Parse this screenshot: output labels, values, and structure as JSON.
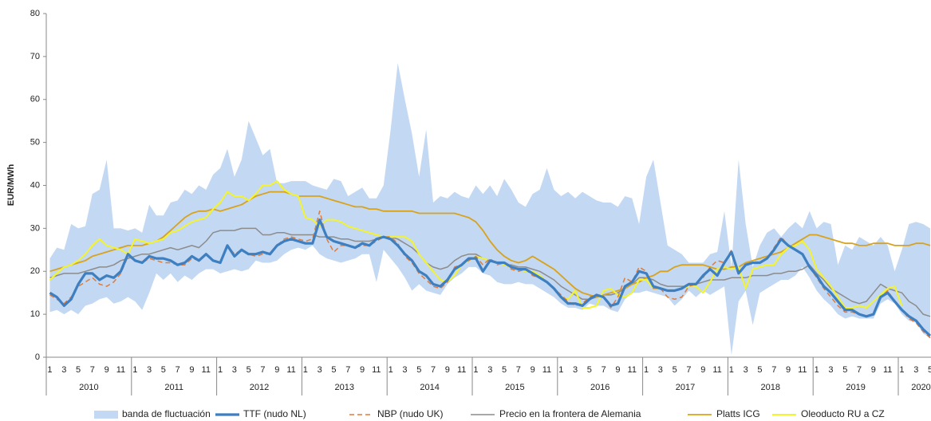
{
  "chart_data": {
    "type": "line",
    "ylabel": "EUR/MWh",
    "ylim": [
      0,
      80
    ],
    "yticks": [
      0,
      10,
      20,
      30,
      40,
      50,
      60,
      70,
      80
    ],
    "grid": false,
    "legend": "bottom",
    "categories": [
      "1",
      null,
      "3",
      null,
      "5",
      null,
      "7",
      null,
      "9",
      null,
      "11",
      null,
      "1",
      null,
      "3",
      null,
      "5",
      null,
      "7",
      null,
      "9",
      null,
      "11",
      null,
      "1",
      null,
      "3",
      null,
      "5",
      null,
      "7",
      null,
      "9",
      null,
      "11",
      null,
      "1",
      null,
      "3",
      null,
      "5",
      null,
      "7",
      null,
      "9",
      null,
      "11",
      null,
      "1",
      null,
      "3",
      null,
      "5",
      null,
      "7",
      null,
      "9",
      null,
      "11",
      null,
      "1",
      null,
      "3",
      null,
      "5",
      null,
      "7",
      null,
      "9",
      null,
      "11",
      null,
      "1",
      null,
      "3",
      null,
      "5",
      null,
      "7",
      null,
      "9",
      null,
      "11",
      null,
      "1",
      null,
      "3",
      null,
      "5",
      null,
      "7",
      null,
      "9",
      null,
      "11",
      null,
      "1",
      null,
      "3",
      null,
      "5",
      null,
      "7",
      null,
      "9",
      null,
      "11",
      null,
      "1",
      null,
      "3",
      null,
      "5",
      null,
      "7",
      null,
      "9",
      null,
      "11",
      null,
      "1",
      null,
      "3",
      null,
      "5"
    ],
    "years": [
      "2010",
      "2011",
      "2012",
      "2013",
      "2014",
      "2015",
      "2016",
      "2017",
      "2018",
      "2019",
      "2020"
    ],
    "band": {
      "name": "banda de fluctuación",
      "color": "#c3d8f2",
      "upper": [
        23,
        25.5,
        25,
        31,
        30,
        30.5,
        38,
        39,
        46,
        30,
        30,
        29.5,
        30,
        29,
        35.5,
        33,
        33,
        36,
        36.5,
        39,
        38,
        40,
        39,
        42.5,
        44,
        48.5,
        42,
        46,
        55,
        51,
        47,
        48.5,
        40.5,
        40.5,
        41,
        41,
        41,
        40,
        39.5,
        39,
        41.5,
        41,
        37.5,
        38.5,
        39.5,
        37,
        37,
        40,
        53,
        68.5,
        60,
        52,
        42,
        53,
        36,
        37.5,
        37,
        38.5,
        37.5,
        37,
        40,
        38,
        40,
        37.5,
        41.5,
        39,
        36,
        35,
        38,
        39,
        44,
        39,
        37.5,
        38.5,
        37,
        38.5,
        37.5,
        36.5,
        36,
        36,
        35,
        37.5,
        37,
        31,
        42,
        46,
        36,
        26,
        25,
        24,
        22,
        22,
        22,
        24,
        24.5,
        34,
        21,
        46,
        31,
        21,
        26,
        29,
        30,
        28,
        30,
        31.5,
        30,
        34,
        30,
        31.5,
        31,
        21.5,
        26,
        25,
        28,
        27,
        26,
        28,
        26,
        20,
        25,
        31,
        31.5,
        31,
        30
      ],
      "lower": [
        10.5,
        11,
        10,
        11,
        10,
        12,
        12.5,
        13.5,
        14,
        12.5,
        13,
        14,
        13,
        11,
        15,
        19.5,
        18,
        19.5,
        17.5,
        19,
        18,
        19.5,
        20.5,
        20.5,
        19.5,
        20,
        20.5,
        20,
        20.5,
        22.5,
        22,
        22,
        22.5,
        24,
        25,
        25.5,
        25,
        26,
        24,
        23,
        22.5,
        22,
        22.5,
        23,
        24,
        24,
        17.5,
        25,
        23,
        21,
        18.5,
        15.5,
        17,
        15.5,
        15,
        14.5,
        17,
        18.5,
        19.5,
        21,
        21,
        19.5,
        19,
        17.5,
        17,
        17,
        17.5,
        17,
        17,
        16,
        15,
        14,
        12.5,
        11.5,
        11.5,
        11,
        12.5,
        12,
        12,
        11,
        10.5,
        13.5,
        15,
        15,
        15.5,
        15,
        14.5,
        14,
        12,
        13.5,
        15.5,
        14,
        15.5,
        14.5,
        15.5,
        16.5,
        0.5,
        13,
        15.5,
        7.5,
        15,
        16,
        17,
        18,
        18,
        19,
        21,
        18.5,
        15.5,
        13.5,
        12,
        10,
        9,
        9.5,
        9,
        9,
        9,
        12.5,
        13.5,
        12.5,
        10,
        8.5,
        8,
        5.5,
        4.5
      ]
    },
    "series": [
      {
        "name": "TTF (nudo NL)",
        "color": "#3d7fc0",
        "style": "solid",
        "width": 3.2,
        "values": [
          15,
          14,
          12,
          13.5,
          17,
          19.5,
          19.5,
          18,
          19,
          18.5,
          20,
          24,
          22.5,
          22,
          23.5,
          23,
          23,
          22.5,
          21.5,
          22,
          23.5,
          22.5,
          24,
          22.5,
          22,
          26,
          23.5,
          25,
          24,
          24,
          24.5,
          24,
          26,
          27,
          27.5,
          27,
          26.5,
          26.5,
          32,
          28,
          27,
          26.5,
          26,
          25.5,
          26.5,
          26,
          27.5,
          28,
          27.5,
          26,
          24,
          22.5,
          20,
          19,
          17,
          16.5,
          18,
          20.5,
          21.5,
          23,
          23,
          20,
          22.5,
          22,
          22,
          21,
          20.5,
          20.5,
          19.5,
          18.5,
          17.5,
          16,
          14,
          12.5,
          12.5,
          12,
          13.5,
          14.5,
          14,
          12,
          12.5,
          16.5,
          17.5,
          20,
          19.5,
          16.5,
          16,
          15.5,
          15.5,
          16,
          17,
          17,
          19,
          20.5,
          19,
          22,
          24.5,
          19.5,
          21.5,
          22,
          22,
          23,
          25,
          27.5,
          26,
          25,
          24,
          21,
          19,
          16.5,
          15,
          13,
          11,
          11,
          10,
          9.5,
          10,
          14,
          15,
          13,
          11,
          9.5,
          8.5,
          6.5,
          5
        ]
      },
      {
        "name": "NBP (nudo UK)",
        "color": "#e07b39",
        "style": "dashed",
        "width": 1.5,
        "values": [
          14.5,
          13.5,
          12.5,
          14,
          16.5,
          17.5,
          18.5,
          17,
          16.5,
          17.5,
          19.5,
          23.5,
          22.5,
          22,
          23,
          22.5,
          22,
          22,
          21.5,
          21.5,
          23,
          22.5,
          24,
          22.5,
          22,
          26,
          24,
          25,
          24,
          23.5,
          24,
          24,
          26,
          27.5,
          28,
          27.5,
          27,
          27.5,
          34,
          27.5,
          24.5,
          26,
          26,
          25.5,
          26,
          26,
          27,
          28,
          28,
          26.5,
          23.5,
          22,
          19.5,
          18,
          16.5,
          16,
          17.5,
          21,
          21.5,
          22.5,
          23.5,
          21.5,
          23,
          21.5,
          22,
          20.5,
          20,
          20.5,
          19,
          18.5,
          17.5,
          16,
          14.5,
          13,
          12,
          12.5,
          14,
          14.5,
          14,
          11.5,
          14,
          18.5,
          17.5,
          21,
          20,
          16,
          16,
          14,
          13.5,
          14,
          16.5,
          17,
          18.5,
          21,
          22.5,
          22,
          25,
          20,
          21.5,
          22,
          22,
          23,
          25.5,
          28,
          26,
          25,
          24,
          21,
          18.5,
          16,
          14,
          12,
          10.5,
          10.5,
          10,
          9.5,
          10,
          14,
          15.5,
          13,
          11,
          9,
          8,
          6,
          4.5
        ]
      },
      {
        "name": "Precio en la frontera de Alemania",
        "color": "#8c8c8c",
        "style": "solid",
        "width": 1.5,
        "values": [
          18.5,
          19,
          19.5,
          19.5,
          19.5,
          20,
          20.5,
          21,
          21,
          21.5,
          22.5,
          23,
          23.5,
          24,
          24,
          24.5,
          25,
          25.5,
          25,
          25.5,
          26,
          25.5,
          27,
          29,
          29.5,
          29.5,
          29.5,
          30,
          30,
          30,
          28.5,
          28.5,
          29,
          29,
          28.5,
          28.5,
          28.5,
          28.5,
          28,
          28,
          28,
          27.5,
          27.5,
          27,
          27,
          27,
          27.5,
          28,
          28,
          27.5,
          26.5,
          25.5,
          24,
          22,
          21,
          20.5,
          21,
          22.5,
          23.5,
          24,
          24,
          23,
          22.5,
          22,
          21.5,
          21.5,
          21,
          21,
          20.5,
          20,
          19,
          18,
          16.5,
          15.5,
          14.5,
          13.5,
          13.5,
          14,
          14.5,
          14.5,
          15,
          16,
          17,
          18.5,
          18.5,
          18,
          17,
          16.5,
          16.5,
          16.5,
          16.5,
          17,
          17.5,
          18,
          18,
          18,
          18.5,
          18.5,
          18.5,
          19,
          19,
          19,
          19.5,
          19.5,
          20,
          20,
          20.5,
          21.5,
          19.5,
          18,
          16,
          15,
          14,
          13,
          12.5,
          13,
          15,
          17,
          16,
          15.5,
          15,
          13,
          12,
          10,
          9.5
        ]
      },
      {
        "name": "Platts ICG",
        "color": "#d9a21b",
        "style": "solid",
        "width": 1.8,
        "values": [
          20,
          20.5,
          21,
          21.5,
          22,
          22.5,
          23.5,
          24,
          24.5,
          25,
          25.5,
          26,
          26,
          26,
          26.5,
          27,
          28,
          29.5,
          31,
          32.5,
          33.5,
          34,
          34,
          34.5,
          34,
          34.5,
          35,
          35.5,
          36.5,
          37.5,
          38,
          38.5,
          38.5,
          38.5,
          38,
          37.5,
          37.5,
          37.5,
          37.5,
          37,
          36.5,
          36,
          35.5,
          35,
          35,
          34.5,
          34.5,
          34,
          34,
          34,
          34,
          34,
          33.5,
          33.5,
          33.5,
          33.5,
          33.5,
          33.5,
          33,
          32.5,
          31.5,
          29.5,
          27,
          25,
          23.5,
          22.5,
          22,
          22.5,
          23.5,
          22.5,
          21.5,
          20.5,
          19,
          17.5,
          16,
          15,
          14.5,
          14,
          14.5,
          15,
          15.5,
          16,
          17,
          17.5,
          18.5,
          19,
          20,
          20,
          21,
          21.5,
          21.5,
          21.5,
          21.5,
          21,
          20.5,
          20.5,
          21,
          21,
          22,
          22.5,
          23,
          23.5,
          24,
          24.5,
          25.5,
          26.5,
          27.5,
          28.5,
          28.5,
          28,
          27.5,
          27,
          26.5,
          26.5,
          26,
          26,
          26.5,
          26.5,
          26.5,
          26,
          26,
          26,
          26.5,
          26.5,
          26
        ]
      },
      {
        "name": "Oleoducto RU a CZ",
        "color": "#f4f42a",
        "style": "solid",
        "width": 2,
        "values": [
          18,
          19.5,
          21,
          21.5,
          22.5,
          24,
          26,
          27.5,
          26,
          25.5,
          25,
          24,
          27.5,
          27,
          26.5,
          27,
          27.5,
          29,
          29.5,
          30.5,
          31.5,
          32,
          32.5,
          34.5,
          36,
          38.5,
          37.5,
          37.5,
          36.5,
          38,
          40,
          40,
          41,
          39,
          38,
          37.5,
          32.5,
          32,
          30.5,
          32,
          32,
          31.5,
          30.5,
          30,
          29.5,
          29,
          28.5,
          28,
          28,
          28,
          28,
          27,
          24,
          22,
          20,
          18,
          17.5,
          19,
          21.5,
          22.5,
          23.5,
          23,
          22.5,
          22,
          21.5,
          21,
          20.5,
          20,
          20,
          19,
          17.5,
          16,
          14,
          13.5,
          15.5,
          11.5,
          11.5,
          12,
          15.5,
          16,
          14.5,
          14,
          15,
          18,
          18,
          16,
          16,
          15.5,
          15.5,
          16,
          16.5,
          16.5,
          15,
          17.5,
          20.5,
          21,
          20.5,
          21,
          16,
          20.5,
          21,
          21.5,
          21.5,
          24,
          25.5,
          26,
          27,
          25,
          20.5,
          18.5,
          16.5,
          14,
          11.5,
          11.5,
          12,
          11.5,
          13,
          14.5,
          16,
          16.5,
          12,
          null,
          null,
          null,
          null
        ]
      }
    ]
  }
}
